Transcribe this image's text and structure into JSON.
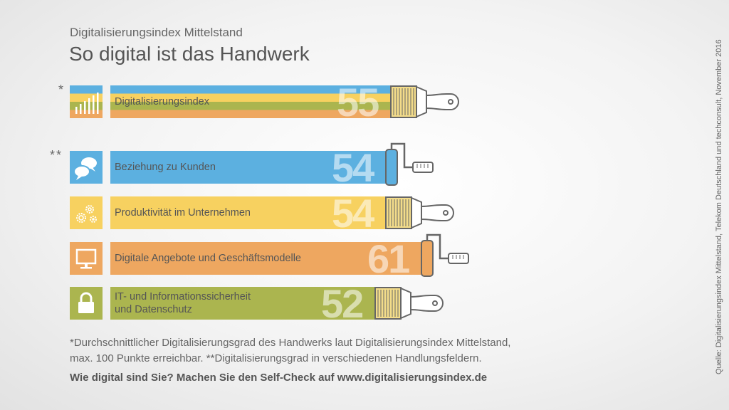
{
  "header": {
    "subtitle": "Digitalisierungsindex Mittelstand",
    "title": "So digital ist das Handwerk"
  },
  "markers": {
    "single": "*",
    "double": "**"
  },
  "colors": {
    "blue": "#5cb0e0",
    "yellow": "#f7d160",
    "orange": "#eea760",
    "green": "#abb54f",
    "tool": "#666666"
  },
  "chart_data": {
    "type": "bar",
    "title": "So digital ist das Handwerk",
    "xlim": [
      0,
      100
    ],
    "categories": [
      "Digitalisierungsindex",
      "Beziehung zu Kunden",
      "Produktivität im Unternehmen",
      "Digitale Angebote und Geschäftsmodelle",
      "IT- und Informationssicherheit und Datenschutz"
    ],
    "values": [
      55,
      54,
      54,
      61,
      52
    ],
    "value_labels": [
      "55",
      "54",
      "54",
      "61",
      "52"
    ],
    "label_lines": [
      [
        "Digitalisierungsindex"
      ],
      [
        "Beziehung zu Kunden"
      ],
      [
        "Produktivität im Unternehmen"
      ],
      [
        "Digitale Angebote und Geschäftsmodelle"
      ],
      [
        "IT- und Informationssicherheit",
        "und Datenschutz"
      ]
    ],
    "colors": [
      "multi",
      "#5cb0e0",
      "#f7d160",
      "#eea760",
      "#abb54f"
    ],
    "tools": [
      "brush",
      "roller",
      "brush",
      "roller",
      "brush"
    ],
    "icons": [
      "bar-chart-icon",
      "speech-bubbles-icon",
      "gears-icon",
      "monitor-icon",
      "lock-icon"
    ]
  },
  "footnote": {
    "line1": "*Durchschnittlicher Digitalisierungsgrad des Handwerks laut Digitalisierungsindex Mittelstand,",
    "line2": "max. 100 Punkte erreichbar. **Digitalisierungsgrad in verschiedenen Handlungsfeldern."
  },
  "cta": "Wie digital sind Sie? Machen Sie den Self-Check auf www.digitalisierungsindex.de",
  "source": "Quelle: Digitalisierungsindex Mittelstand, Telekom Deutschland und techconsult, November 2016"
}
